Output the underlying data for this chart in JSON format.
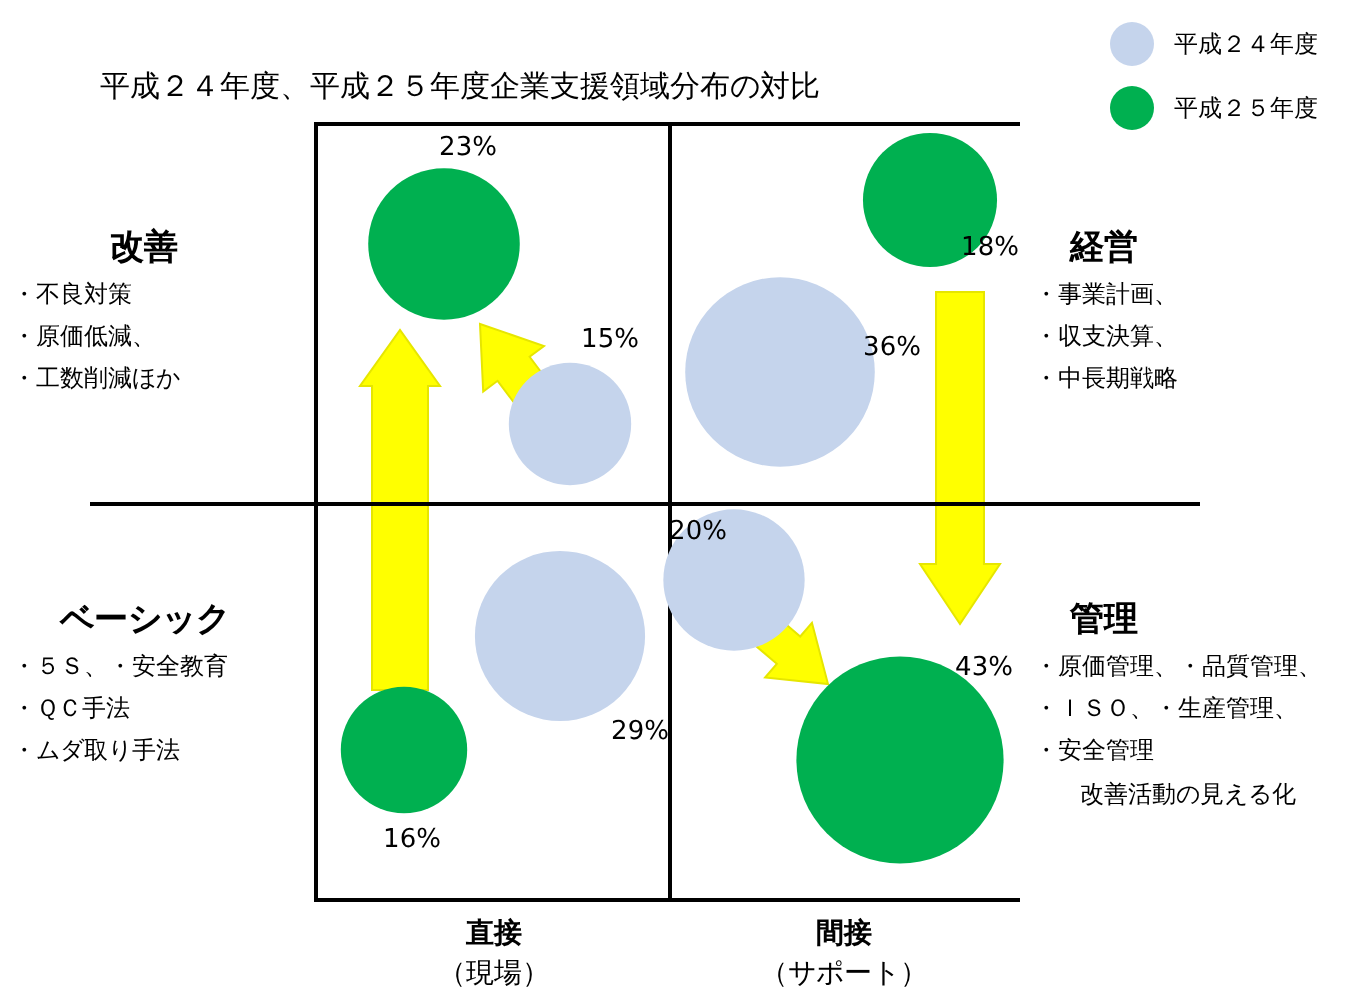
{
  "chart_data": {
    "type": "other",
    "title": "平成２４年度、平成２５年度企業支援領域分布の対比",
    "categories": [
      "改善",
      "経営",
      "ベーシック",
      "管理"
    ],
    "series": [
      {
        "name": "平成２４年度",
        "color": "#c5d4ec",
        "values": [
          15,
          36,
          29,
          20
        ],
        "value_labels": [
          "15%",
          "36%",
          "29%",
          "20%"
        ]
      },
      {
        "name": "平成２５年度",
        "color": "#00b050",
        "values": [
          23,
          18,
          16,
          43
        ],
        "value_labels": [
          "23%",
          "18%",
          "16%",
          "43%"
        ]
      }
    ],
    "annotations": [
      "・不良対策",
      "・原価低減、",
      "・工数削減ほか",
      "・事業計画、",
      "・収支決算、",
      "・中長期戦略",
      "・５Ｓ、・安全教育",
      "・ＱＣ手法",
      "・ムダ取り手法",
      "・原価管理、・品質管理、",
      "・ＩＳＯ、・生産管理、",
      "・安全管理",
      "改善活動の見える化",
      "直接",
      "（現場）",
      "間接",
      "（サポート）"
    ],
    "legend": "top right"
  }
}
